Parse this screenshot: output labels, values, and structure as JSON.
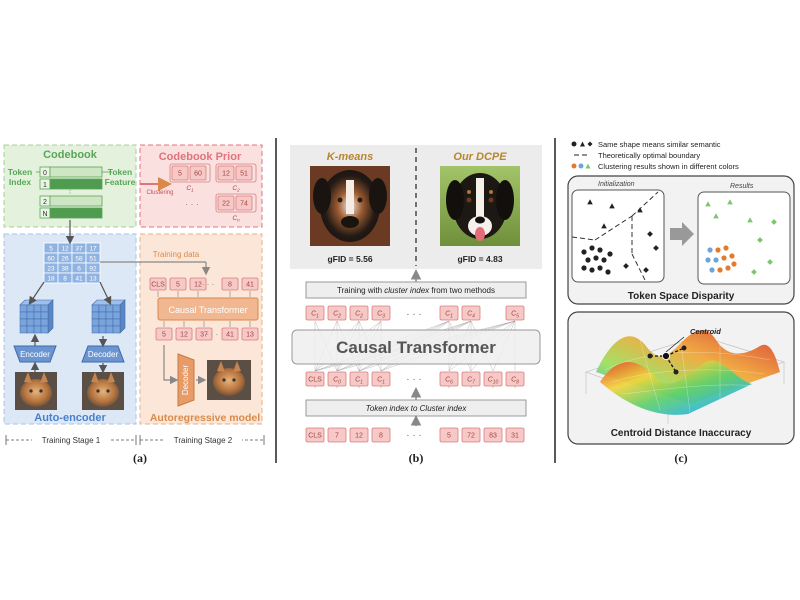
{
  "panel_a": {
    "codebook_title": "Codebook",
    "token_index_label": "Token\nIndex",
    "token_feature_label": "Token\nFeature",
    "codebook_rows": [
      "0",
      "1",
      "2",
      "N"
    ],
    "codebook_prior_title": "Codebook Prior",
    "clustering_label": "Clustering",
    "prior_groups": [
      {
        "cells": [
          "5",
          "60"
        ],
        "tag": "C1"
      },
      {
        "cells": [
          "12",
          "51"
        ],
        "tag": "C2"
      },
      {
        "cells": [
          "22",
          "74"
        ],
        "tag": "Cn"
      }
    ],
    "grid_values": [
      [
        "5",
        "12",
        "37",
        "17"
      ],
      [
        "60",
        "26",
        "58",
        "51"
      ],
      [
        "23",
        "38",
        "6",
        "92"
      ],
      [
        "18",
        "8",
        "41",
        "13"
      ]
    ],
    "encoder_label": "Encoder",
    "decoder_label": "Decoder",
    "autoencoder_label": "Auto-encoder",
    "training_data_label": "Training data",
    "ar_top_seq": [
      "CLS",
      "5",
      "12",
      "8",
      "41"
    ],
    "causal_transformer_small": "Causal Transformer",
    "ar_bottom_seq": [
      "5",
      "12",
      "37",
      "41",
      "13"
    ],
    "decoder_vertical": "Decoder",
    "autoregressive_label": "Autoregressive model",
    "stage1_label": "Training Stage 1",
    "stage2_label": "Training Stage 2",
    "caption": "(a)"
  },
  "panel_b": {
    "kmeans_title": "K-means",
    "dcpe_title": "Our DCPE",
    "kmeans_gfid": "gFID = 5.56",
    "dcpe_gfid": "gFID = 4.83",
    "training_box_prefix": "Training with ",
    "training_box_italic": "cluster index",
    "training_box_suffix": " from two methods",
    "top_tokens": [
      "C1",
      "C2",
      "C2",
      "C3",
      "C1",
      "C4",
      "C5"
    ],
    "causal_transformer": "Causal Transformer",
    "mid_tokens": [
      "CLS",
      "C0",
      "C1",
      "C1",
      "C6",
      "C7",
      "C10",
      "C8"
    ],
    "index_box": "Token index to Cluster index",
    "bottom_tokens": [
      "CLS",
      "7",
      "12",
      "8",
      "5",
      "72",
      "83",
      "31"
    ],
    "caption": "(b)"
  },
  "panel_c": {
    "legend": [
      "Same shape means similar semantic",
      "Theoretically optimal boundary",
      "Clustering results shown in different colors"
    ],
    "initialization_label": "Initialization",
    "results_label": "Results",
    "disparity_title": "Token Space Disparity",
    "centroid_label": "Centroid",
    "centroid_title": "Centroid Distance Inaccuracy",
    "caption": "(c)"
  },
  "colors": {
    "codebook_green": "#58a658",
    "prior_pink": "#e0737b",
    "ae_blue": "#4a7fc9",
    "ar_orange": "#d98a4a",
    "token_fill": "#f6c9c7",
    "token_stroke": "#d77f7f"
  }
}
